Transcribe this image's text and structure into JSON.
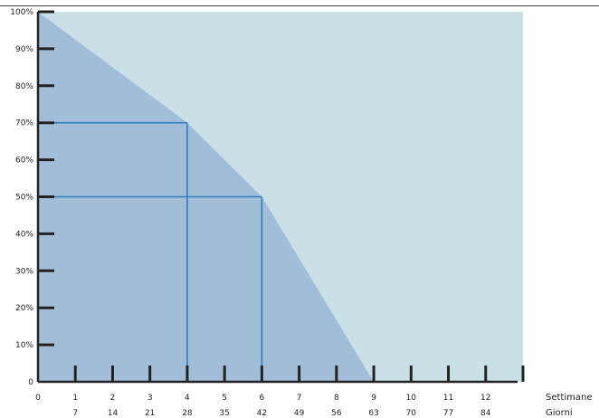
{
  "chart_data": {
    "type": "area",
    "title": "",
    "x_axis": {
      "title": "Settimane",
      "range": [
        0,
        13
      ],
      "ticks": [
        0,
        1,
        2,
        3,
        4,
        5,
        6,
        7,
        8,
        9,
        10,
        11,
        12
      ],
      "tick_labels": [
        "0",
        "1",
        "2",
        "3",
        "4",
        "5",
        "6",
        "7",
        "8",
        "9",
        "10",
        "11",
        "12"
      ]
    },
    "secondary_x_axis": {
      "title": "Giorni",
      "ticks": [
        1,
        2,
        3,
        4,
        5,
        6,
        7,
        8,
        9,
        10,
        11,
        12
      ],
      "tick_labels": [
        "7",
        "14",
        "21",
        "28",
        "35",
        "42",
        "49",
        "56",
        "63",
        "70",
        "77",
        "84"
      ]
    },
    "y_axis": {
      "range": [
        0,
        100
      ],
      "ticks": [
        0,
        10,
        20,
        30,
        40,
        50,
        60,
        70,
        80,
        90,
        100
      ],
      "tick_labels": [
        "0",
        "10%",
        "20%",
        "30%",
        "40%",
        "50%",
        "60%",
        "70%",
        "80%",
        "90%",
        "100%"
      ]
    },
    "series": [
      {
        "x": [
          0,
          4,
          6,
          9
        ],
        "y": [
          100,
          70,
          50,
          0
        ]
      }
    ],
    "reference_lines": [
      {
        "x": 4,
        "y": 70
      },
      {
        "x": 6,
        "y": 50
      }
    ],
    "colors": {
      "background": "#c9e1e6",
      "area": "#a2bdd8",
      "reference": "#2f7fc0",
      "axis": "#222222"
    }
  }
}
